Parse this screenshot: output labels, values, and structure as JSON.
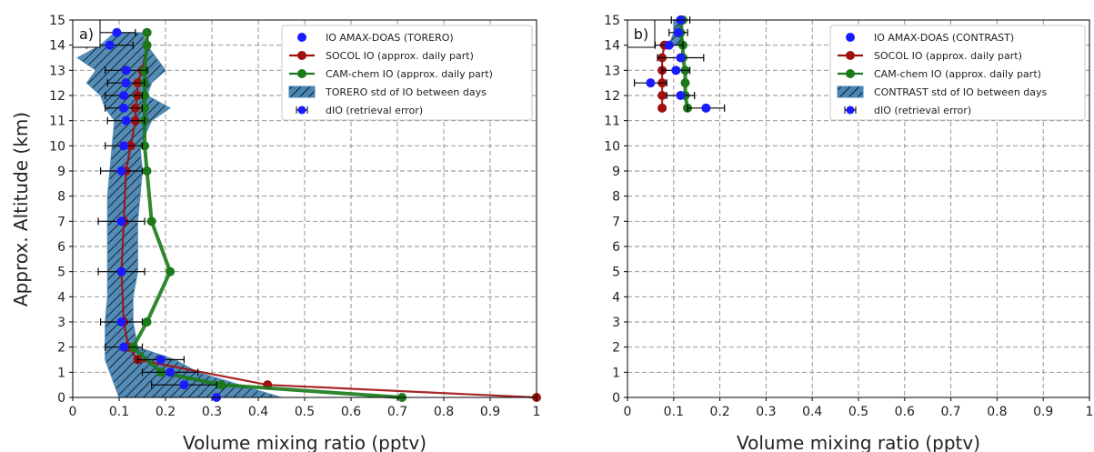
{
  "chart_data": [
    {
      "type": "scatter",
      "panel_label": "a)",
      "xlabel": "Volume mixing ratio (pptv)",
      "ylabel": "Approx. Altitude (km)",
      "xlim": [
        0,
        1
      ],
      "ylim": [
        0,
        15
      ],
      "xticks": [
        0,
        0.1,
        0.2,
        0.3,
        0.4,
        0.5,
        0.6,
        0.7,
        0.8,
        0.9,
        1
      ],
      "xtick_labels": [
        "0",
        "0.1",
        "0.2",
        "0.3",
        "0.4",
        "0.5",
        "0.6",
        "0.7",
        "0.8",
        "0.9",
        "1"
      ],
      "yticks": [
        0,
        1,
        2,
        3,
        4,
        5,
        6,
        7,
        8,
        9,
        10,
        11,
        12,
        13,
        14,
        15
      ],
      "ytick_labels": [
        "0",
        "1",
        "2",
        "3",
        "4",
        "5",
        "6",
        "7",
        "8",
        "9",
        "10",
        "11",
        "12",
        "13",
        "14",
        "15"
      ],
      "grid": true,
      "legend_position": "top-right",
      "legend": [
        {
          "label": "IO AMAX-DOAS (TORERO)",
          "kind": "marker",
          "color": "#1a1aff"
        },
        {
          "label": "SOCOL IO (approx. daily part)",
          "kind": "line-marker",
          "color": "#a01010"
        },
        {
          "label": "CAM-chem IO (approx. daily part)",
          "kind": "line-marker",
          "color": "#1a7a1a"
        },
        {
          "label": "TORERO std of IO between days",
          "kind": "hatch",
          "color": "#4a86b4"
        },
        {
          "label": "dIO (retrieval error)",
          "kind": "errorbar",
          "color": "#1a1aff"
        }
      ],
      "std_band": {
        "y": [
          0,
          0.5,
          1,
          1.5,
          2,
          3,
          4,
          5,
          6,
          7,
          8,
          9,
          10,
          11,
          11.5,
          12,
          12.5,
          13,
          13.5,
          14,
          14.5
        ],
        "low": [
          0.1,
          0.09,
          0.08,
          0.07,
          0.07,
          0.07,
          0.075,
          0.075,
          0.075,
          0.075,
          0.075,
          0.08,
          0.085,
          0.09,
          0.07,
          0.06,
          0.03,
          0.05,
          0.01,
          0.06,
          0.09
        ],
        "high": [
          0.45,
          0.36,
          0.27,
          0.22,
          0.14,
          0.13,
          0.13,
          0.14,
          0.14,
          0.14,
          0.145,
          0.15,
          0.145,
          0.17,
          0.21,
          0.16,
          0.17,
          0.2,
          0.18,
          0.16,
          0.15
        ]
      },
      "series": [
        {
          "name": "IO AMAX-DOAS (TORERO)",
          "color": "#1a1aff",
          "x": [
            0.31,
            0.24,
            0.21,
            0.19,
            0.11,
            0.105,
            0.105,
            0.105,
            0.105,
            0.11,
            0.115,
            0.11,
            0.11,
            0.115,
            0.115,
            0.08,
            0.095
          ],
          "y": [
            0,
            0.5,
            1,
            1.5,
            2,
            3,
            5,
            7,
            9,
            10,
            11,
            11.5,
            12,
            12.5,
            13,
            14,
            14.5
          ],
          "xerr": [
            0,
            0.07,
            0.06,
            0.05,
            0.04,
            0.045,
            0.05,
            0.05,
            0.045,
            0.04,
            0.04,
            0.04,
            0.04,
            0.04,
            0.045,
            0.05,
            0.04
          ]
        },
        {
          "name": "SOCOL IO (approx. daily part)",
          "color": "#a01010",
          "x": [
            1.0,
            0.42,
            0.14,
            0.12,
            0.11,
            0.105,
            0.11,
            0.115,
            0.125,
            0.135,
            0.135,
            0.14,
            0.14,
            0.15,
            0.16,
            0.16
          ],
          "y": [
            0,
            0.5,
            1.5,
            2,
            3,
            5,
            7,
            9,
            10,
            11,
            11.5,
            12,
            12.5,
            13,
            14,
            14.5
          ]
        },
        {
          "name": "CAM-chem IO (approx. daily part)",
          "color": "#1a7a1a",
          "x": [
            0.71,
            0.32,
            0.19,
            0.13,
            0.16,
            0.21,
            0.17,
            0.16,
            0.155,
            0.155,
            0.155,
            0.155,
            0.155,
            0.155,
            0.16,
            0.16
          ],
          "y": [
            0,
            0.5,
            1,
            2,
            3,
            5,
            7,
            9,
            10,
            11,
            11.5,
            12,
            12.5,
            13,
            14,
            14.5
          ]
        }
      ]
    },
    {
      "type": "scatter",
      "panel_label": "b)",
      "xlabel": "Volume mixing ratio (pptv)",
      "ylabel": "",
      "xlim": [
        0,
        1
      ],
      "ylim": [
        0,
        15
      ],
      "xticks": [
        0,
        0.1,
        0.2,
        0.3,
        0.4,
        0.5,
        0.6,
        0.7,
        0.8,
        0.9,
        1
      ],
      "xtick_labels": [
        "0",
        "0.1",
        "0.2",
        "0.3",
        "0.4",
        "0.5",
        "0.6",
        "0.7",
        "0.8",
        "0.9",
        "1"
      ],
      "yticks": [
        0,
        1,
        2,
        3,
        4,
        5,
        6,
        7,
        8,
        9,
        10,
        11,
        12,
        13,
        14,
        15
      ],
      "ytick_labels": [
        "0",
        "1",
        "2",
        "3",
        "4",
        "5",
        "6",
        "7",
        "8",
        "9",
        "10",
        "11",
        "12",
        "13",
        "14",
        "15"
      ],
      "grid": true,
      "legend_position": "top-right",
      "legend": [
        {
          "label": "IO AMAX-DOAS (CONTRAST)",
          "kind": "marker",
          "color": "#1a1aff"
        },
        {
          "label": "SOCOL IO (approx. daily part)",
          "kind": "line-marker",
          "color": "#a01010"
        },
        {
          "label": "CAM-chem IO (approx. daily part)",
          "kind": "line-marker",
          "color": "#1a7a1a"
        },
        {
          "label": "CONTRAST std of IO between days",
          "kind": "hatch",
          "color": "#4a86b4"
        },
        {
          "label": "dIO (retrieval error)",
          "kind": "errorbar",
          "color": "#1a1aff"
        }
      ],
      "std_band": {
        "y": [
          14,
          14.5,
          15
        ],
        "low": [
          0.09,
          0.1,
          0.1
        ],
        "high": [
          0.12,
          0.12,
          0.12
        ]
      },
      "series": [
        {
          "name": "IO AMAX-DOAS (CONTRAST)",
          "color": "#1a1aff",
          "x": [
            0.17,
            0.115,
            0.05,
            0.105,
            0.115,
            0.09,
            0.11,
            0.115
          ],
          "y": [
            11.5,
            12,
            12.5,
            13,
            13.5,
            14,
            14.5,
            15
          ],
          "xerr": [
            0.04,
            0.03,
            0.035,
            0.03,
            0.05,
            0.03,
            0.02,
            0.02
          ]
        },
        {
          "name": "SOCOL IO (approx. daily part)",
          "color": "#a01010",
          "x": [
            0.075,
            0.075,
            0.075,
            0.075,
            0.075,
            0.08
          ],
          "y": [
            11.5,
            12,
            12.5,
            13,
            13.5,
            14
          ]
        },
        {
          "name": "CAM-chem IO (approx. daily part)",
          "color": "#1a7a1a",
          "x": [
            0.13,
            0.125,
            0.125,
            0.125,
            0.12,
            0.12,
            0.115,
            0.115,
            0.12
          ],
          "y": [
            11.5,
            12,
            12.5,
            13,
            13.5,
            14,
            14.5,
            15,
            15
          ]
        }
      ]
    }
  ]
}
